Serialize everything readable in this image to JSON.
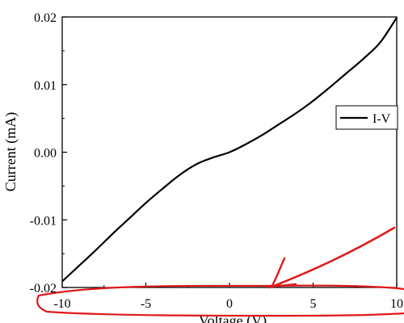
{
  "chart_data": {
    "type": "line",
    "title": "",
    "xlabel": "Voltage (V)",
    "ylabel": "Current (mA)",
    "xlim": [
      -10,
      10
    ],
    "ylim": [
      -0.02,
      0.02
    ],
    "grid": false,
    "legend_position": "right",
    "x_ticks": [
      -10,
      -5,
      0,
      5,
      10
    ],
    "x_tick_labels": [
      "-10",
      "-5",
      "0",
      "5",
      "10"
    ],
    "y_ticks": [
      -0.02,
      -0.01,
      0.0,
      0.01,
      0.02
    ],
    "y_tick_labels": [
      "-0.02",
      "-0.01",
      "0.00",
      "0.01",
      "0.02"
    ],
    "series": [
      {
        "name": "I-V",
        "color": "#000000",
        "x": [
          -10,
          -9,
          -8,
          -7,
          -6,
          -5,
          -4,
          -3,
          -2,
          -1,
          0,
          1,
          2,
          3,
          4,
          5,
          6,
          7,
          8,
          9,
          10
        ],
        "y": [
          -0.0191,
          -0.0168,
          -0.0145,
          -0.0121,
          -0.0098,
          -0.0075,
          -0.0054,
          -0.0034,
          -0.0018,
          -0.0008,
          0.0,
          0.0012,
          0.0026,
          0.0042,
          0.0058,
          0.0076,
          0.0096,
          0.0117,
          0.0138,
          0.0162,
          0.0199
        ]
      }
    ]
  },
  "annotation": {
    "color": "#e0191b"
  }
}
